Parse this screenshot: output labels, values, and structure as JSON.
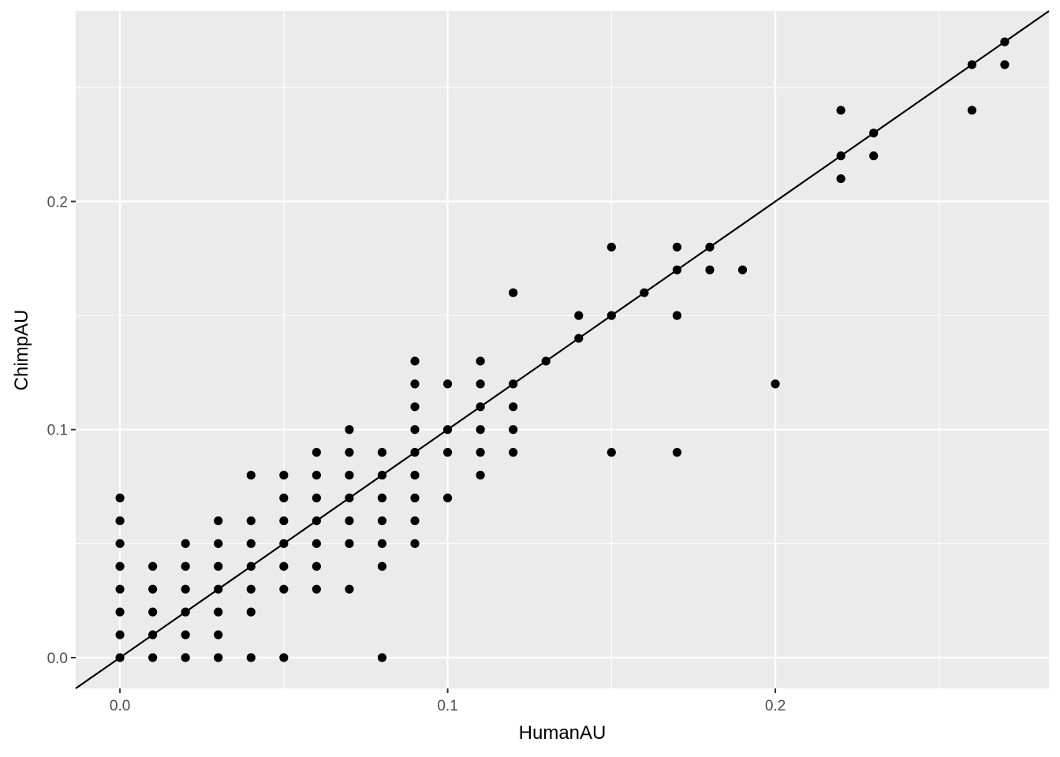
{
  "chart_data": {
    "type": "scatter",
    "title": "",
    "xlabel": "HumanAU",
    "ylabel": "ChimpAU",
    "xlim": [
      -0.0135,
      0.2835
    ],
    "ylim": [
      -0.0135,
      0.2835
    ],
    "x_ticks": [
      0.0,
      0.1,
      0.2
    ],
    "y_ticks": [
      0.0,
      0.1,
      0.2
    ],
    "x_tick_labels": [
      "0.0",
      "0.1",
      "0.2"
    ],
    "y_tick_labels": [
      "0.0",
      "0.1",
      "0.2"
    ],
    "grid": true,
    "legend": "none",
    "reference_line": {
      "type": "identity",
      "slope": 1,
      "intercept": 0
    },
    "colors": {
      "panel": "#ebebeb",
      "grid": "#ffffff",
      "points": "#000000",
      "line": "#000000"
    },
    "points": [
      [
        0.0,
        0.0
      ],
      [
        0.0,
        0.01
      ],
      [
        0.0,
        0.02
      ],
      [
        0.0,
        0.03
      ],
      [
        0.0,
        0.04
      ],
      [
        0.0,
        0.05
      ],
      [
        0.0,
        0.06
      ],
      [
        0.0,
        0.07
      ],
      [
        0.01,
        0.0
      ],
      [
        0.01,
        0.01
      ],
      [
        0.01,
        0.02
      ],
      [
        0.01,
        0.03
      ],
      [
        0.01,
        0.04
      ],
      [
        0.02,
        0.0
      ],
      [
        0.02,
        0.01
      ],
      [
        0.02,
        0.02
      ],
      [
        0.02,
        0.03
      ],
      [
        0.02,
        0.04
      ],
      [
        0.02,
        0.05
      ],
      [
        0.03,
        0.0
      ],
      [
        0.03,
        0.01
      ],
      [
        0.03,
        0.02
      ],
      [
        0.03,
        0.03
      ],
      [
        0.03,
        0.04
      ],
      [
        0.03,
        0.05
      ],
      [
        0.03,
        0.06
      ],
      [
        0.04,
        0.0
      ],
      [
        0.04,
        0.02
      ],
      [
        0.04,
        0.03
      ],
      [
        0.04,
        0.04
      ],
      [
        0.04,
        0.05
      ],
      [
        0.04,
        0.06
      ],
      [
        0.04,
        0.08
      ],
      [
        0.05,
        0.0
      ],
      [
        0.05,
        0.03
      ],
      [
        0.05,
        0.04
      ],
      [
        0.05,
        0.05
      ],
      [
        0.05,
        0.06
      ],
      [
        0.05,
        0.07
      ],
      [
        0.05,
        0.08
      ],
      [
        0.06,
        0.03
      ],
      [
        0.06,
        0.04
      ],
      [
        0.06,
        0.05
      ],
      [
        0.06,
        0.06
      ],
      [
        0.06,
        0.07
      ],
      [
        0.06,
        0.08
      ],
      [
        0.06,
        0.09
      ],
      [
        0.07,
        0.03
      ],
      [
        0.07,
        0.05
      ],
      [
        0.07,
        0.06
      ],
      [
        0.07,
        0.07
      ],
      [
        0.07,
        0.08
      ],
      [
        0.07,
        0.09
      ],
      [
        0.07,
        0.1
      ],
      [
        0.08,
        0.0
      ],
      [
        0.08,
        0.04
      ],
      [
        0.08,
        0.05
      ],
      [
        0.08,
        0.06
      ],
      [
        0.08,
        0.07
      ],
      [
        0.08,
        0.08
      ],
      [
        0.08,
        0.09
      ],
      [
        0.09,
        0.05
      ],
      [
        0.09,
        0.06
      ],
      [
        0.09,
        0.07
      ],
      [
        0.09,
        0.08
      ],
      [
        0.09,
        0.09
      ],
      [
        0.09,
        0.1
      ],
      [
        0.09,
        0.11
      ],
      [
        0.09,
        0.12
      ],
      [
        0.09,
        0.13
      ],
      [
        0.1,
        0.07
      ],
      [
        0.1,
        0.09
      ],
      [
        0.1,
        0.1
      ],
      [
        0.1,
        0.12
      ],
      [
        0.11,
        0.08
      ],
      [
        0.11,
        0.09
      ],
      [
        0.11,
        0.1
      ],
      [
        0.11,
        0.11
      ],
      [
        0.11,
        0.12
      ],
      [
        0.11,
        0.13
      ],
      [
        0.12,
        0.09
      ],
      [
        0.12,
        0.1
      ],
      [
        0.12,
        0.11
      ],
      [
        0.12,
        0.12
      ],
      [
        0.12,
        0.16
      ],
      [
        0.13,
        0.13
      ],
      [
        0.14,
        0.14
      ],
      [
        0.14,
        0.15
      ],
      [
        0.15,
        0.09
      ],
      [
        0.15,
        0.15
      ],
      [
        0.15,
        0.18
      ],
      [
        0.16,
        0.16
      ],
      [
        0.17,
        0.09
      ],
      [
        0.17,
        0.15
      ],
      [
        0.17,
        0.17
      ],
      [
        0.17,
        0.18
      ],
      [
        0.18,
        0.17
      ],
      [
        0.18,
        0.18
      ],
      [
        0.19,
        0.17
      ],
      [
        0.2,
        0.12
      ],
      [
        0.22,
        0.21
      ],
      [
        0.22,
        0.22
      ],
      [
        0.22,
        0.24
      ],
      [
        0.23,
        0.22
      ],
      [
        0.23,
        0.23
      ],
      [
        0.26,
        0.24
      ],
      [
        0.26,
        0.26
      ],
      [
        0.27,
        0.26
      ],
      [
        0.27,
        0.27
      ]
    ]
  }
}
